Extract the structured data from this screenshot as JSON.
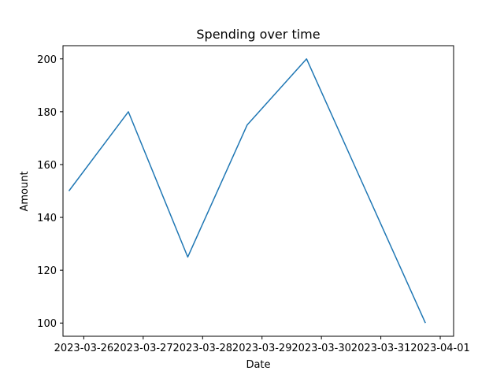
{
  "chart_data": {
    "type": "line",
    "title": "Spending over time",
    "xlabel": "Date",
    "ylabel": "Amount",
    "x_ticks": [
      "2023-03-26",
      "2023-03-27",
      "2023-03-28",
      "2023-03-29",
      "2023-03-30",
      "2023-03-31",
      "2023-04-01"
    ],
    "y_ticks": [
      100,
      120,
      140,
      160,
      180,
      200
    ],
    "ylim": [
      95,
      205
    ],
    "grid": false,
    "series": [
      {
        "color": "#1f77b4",
        "x": [
          "2023-03-25T18:00",
          "2023-03-26T18:00",
          "2023-03-27T18:00",
          "2023-03-28T18:00",
          "2023-03-29T18:00",
          "2023-03-30T18:00",
          "2023-03-31T18:00"
        ],
        "values": [
          150,
          180,
          125,
          175,
          200,
          150,
          100
        ]
      }
    ],
    "xlim": [
      "2023-03-25T15:36",
      "2023-04-01T05:24"
    ]
  }
}
